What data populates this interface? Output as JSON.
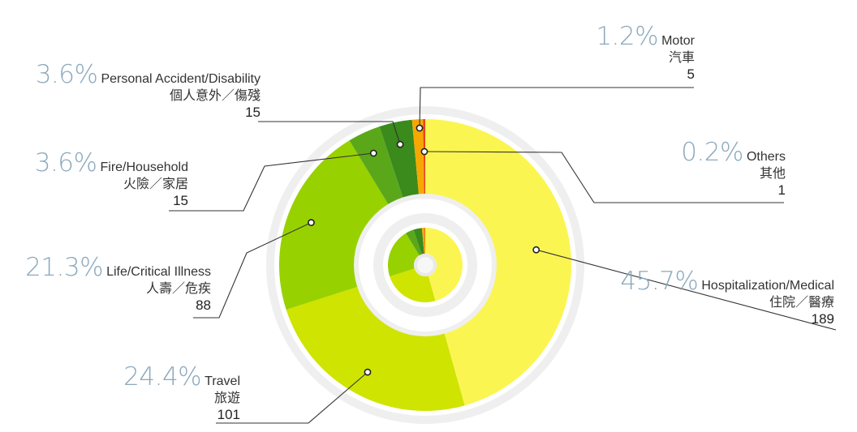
{
  "chart_data": {
    "type": "pie",
    "slices": [
      {
        "percent": "45.7%",
        "name": "Hospitalization/Medical",
        "name_zh": "住院／醫療",
        "count": "189",
        "value": 189,
        "color": "#fbf551"
      },
      {
        "percent": "24.4%",
        "name": "Travel",
        "name_zh": "旅遊",
        "count": "101",
        "value": 101,
        "color": "#cfe400"
      },
      {
        "percent": "21.3%",
        "name": "Life/Critical Illness",
        "name_zh": "人壽／危疾",
        "count": "88",
        "value": 88,
        "color": "#98d100"
      },
      {
        "percent": "3.6%",
        "name": "Fire/Household",
        "name_zh": "火險／家居",
        "count": "15",
        "value": 15,
        "color": "#5aa81a"
      },
      {
        "percent": "3.6%",
        "name": "Personal Accident/Disability",
        "name_zh": "個人意外／傷殘",
        "count": "15",
        "value": 15,
        "color": "#3a8a1c"
      },
      {
        "percent": "1.2%",
        "name": "Motor",
        "name_zh": "汽車",
        "count": "5",
        "value": 5,
        "color": "#f7a800"
      },
      {
        "percent": "0.2%",
        "name": "Others",
        "name_zh": "其他",
        "count": "1",
        "value": 1,
        "color": "#e8431f"
      }
    ]
  }
}
